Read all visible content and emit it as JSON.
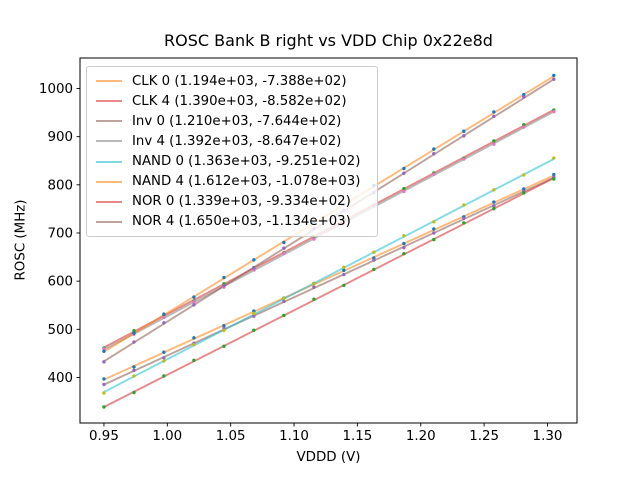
{
  "chart_data": {
    "type": "scatter",
    "title": "ROSC Bank B right vs VDD Chip 0x22e8d",
    "xlabel": "VDDD (V)",
    "ylabel": "ROSC (MHz)",
    "xlim": [
      0.9311,
      1.3233
    ],
    "ylim": [
      305.5,
      1063.3
    ],
    "grid": false,
    "legend_position": "upper-left",
    "axis_color": "#000000",
    "background_color": "#ffffff",
    "legend_border_color": "#cccccc",
    "line_alpha": 0.55,
    "x_ticks": {
      "values": [
        0.95,
        1.0,
        1.05,
        1.1,
        1.15,
        1.2,
        1.25,
        1.3
      ],
      "labels": [
        "0.95",
        "1.00",
        "1.05",
        "1.10",
        "1.15",
        "1.20",
        "1.25",
        "1.30"
      ]
    },
    "y_ticks": {
      "values": [
        400,
        500,
        600,
        700,
        800,
        900,
        1000
      ],
      "labels": [
        "400",
        "500",
        "600",
        "700",
        "800",
        "900",
        "1000"
      ]
    },
    "x": [
      0.95,
      0.9737,
      0.9973,
      1.021,
      1.0447,
      1.0683,
      1.092,
      1.1157,
      1.1393,
      1.163,
      1.1867,
      1.2103,
      1.234,
      1.2577,
      1.2813,
      1.305
    ],
    "series": [
      {
        "name": "CLK 0",
        "legend_label": "CLK 0 (1.194e+03, -7.388e+02)",
        "fit_slope": 1194,
        "fit_intercept": -738.8,
        "line_color": "#ff7f0e",
        "marker_color": "#1f77b4",
        "y": [
          397.0,
          421.8,
          452.5,
          482.3,
          507.5,
          537.8,
          564.5,
          595.3,
          622.5,
          648.3,
          678.0,
          708.3,
          733.5,
          764.3,
          791.5,
          821.3
        ]
      },
      {
        "name": "CLK 4",
        "legend_label": "CLK 4 (1.390e+03, -8.582e+02)",
        "fit_slope": 1390,
        "fit_intercept": -858.2,
        "line_color": "#d62728",
        "marker_color": "#2ca02c",
        "y": [
          461.3,
          497.2,
          529.1,
          559.0,
          594.4,
          628.3,
          658.7,
          692.6,
          727.5,
          757.4,
          792.3,
          824.7,
          855.1,
          891.0,
          924.9,
          955.3
        ]
      },
      {
        "name": "Inv 0",
        "legend_label": "Inv 0 (1.210e+03, -7.644e+02)",
        "fit_slope": 1210,
        "fit_intercept": -764.4,
        "line_color": "#8c564b",
        "marker_color": "#9467bd",
        "y": [
          385.6,
          414.7,
          440.9,
          471.0,
          501.7,
          527.3,
          557.9,
          587.6,
          613.7,
          643.9,
          669.5,
          700.1,
          730.3,
          756.4,
          786.6,
          815.7
        ]
      },
      {
        "name": "Inv 4",
        "legend_label": "Inv 4 (1.392e+03, -8.647e+02)",
        "fit_slope": 1392,
        "fit_intercept": -864.7,
        "line_color": "#7f7f7f",
        "marker_color": "#e377c2",
        "y": [
          459.7,
          489.7,
          524.6,
          557.1,
          587.5,
          623.4,
          657.4,
          687.3,
          721.3,
          755.7,
          786.1,
          822.1,
          853.5,
          884.5,
          919.9,
          951.9
        ]
      },
      {
        "name": "NAND 0",
        "legend_label": "NAND 0 (1.363e+03, -9.251e+02)",
        "fit_slope": 1363,
        "fit_intercept": -925.1,
        "line_color": "#17becf",
        "marker_color": "#bcbd22",
        "y": [
          367.8,
          403.0,
          434.3,
          468.0,
          497.8,
          533.1,
          563.8,
          594.6,
          628.8,
          660.1,
          694.4,
          723.1,
          757.9,
          789.6,
          820.4,
          855.6
        ]
      },
      {
        "name": "NAND 4",
        "legend_label": "NAND 4 (1.612e+03, -1.078e+03)",
        "fit_slope": 1612,
        "fit_intercept": -1078,
        "line_color": "#ff7f0e",
        "marker_color": "#1f77b4",
        "y": [
          454.4,
          492.1,
          531.7,
          566.9,
          607.5,
          644.2,
          680.3,
          721.5,
          759.1,
          798.8,
          833.9,
          874.1,
          911.2,
          951.4,
          987.0,
          1027.2
        ]
      },
      {
        "name": "NOR 0",
        "legend_label": "NOR 0 (1.339e+03, -9.334e+02)",
        "fit_slope": 1339,
        "fit_intercept": -933.4,
        "line_color": "#d62728",
        "marker_color": "#2ca02c",
        "y": [
          338.7,
          368.9,
          403.1,
          435.7,
          464.9,
          498.1,
          528.8,
          562.5,
          591.2,
          624.4,
          657.0,
          686.2,
          720.9,
          750.6,
          783.3,
          812.0
        ]
      },
      {
        "name": "NOR 4",
        "legend_label": "NOR 4 (1.650e+03, -1.134e+03)",
        "fit_slope": 1650,
        "fit_intercept": -1134,
        "line_color": "#8c564b",
        "marker_color": "#9467bd",
        "y": [
          432.5,
          473.6,
          513.6,
          550.7,
          590.7,
          627.3,
          668.3,
          708.9,
          746.9,
          784.0,
          824.0,
          864.6,
          901.6,
          942.2,
          982.2,
          1019.3
        ]
      }
    ]
  }
}
